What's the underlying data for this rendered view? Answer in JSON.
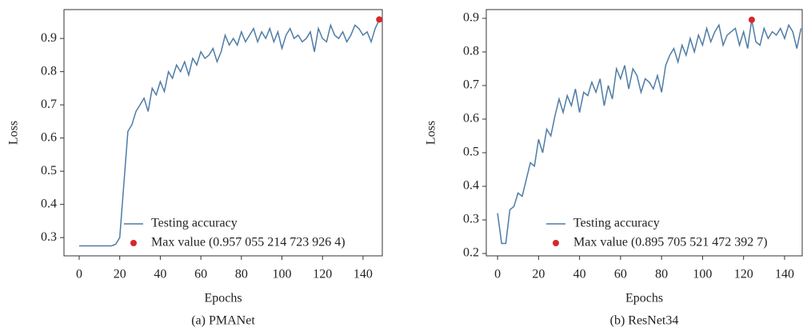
{
  "chart_data": [
    {
      "type": "line",
      "xlabel": "Epochs",
      "ylabel": "Loss",
      "caption": "(a) PMANet",
      "xlim": [
        -7.5,
        149.5
      ],
      "ylim": [
        0.245,
        0.987
      ],
      "xticks": [
        0,
        20,
        40,
        60,
        80,
        100,
        120,
        140
      ],
      "yticks": [
        0.3,
        0.4,
        0.5,
        0.6,
        0.7,
        0.8,
        0.9
      ],
      "series": [
        {
          "name": "Testing accuracy",
          "kind": "line",
          "color": "#4e7ca6",
          "x": [
            0,
            2,
            4,
            6,
            8,
            10,
            12,
            14,
            16,
            18,
            20,
            22,
            24,
            26,
            28,
            30,
            32,
            34,
            36,
            38,
            40,
            42,
            44,
            46,
            48,
            50,
            52,
            54,
            56,
            58,
            60,
            62,
            64,
            66,
            68,
            70,
            72,
            74,
            76,
            78,
            80,
            82,
            84,
            86,
            88,
            90,
            92,
            94,
            96,
            98,
            100,
            102,
            104,
            106,
            108,
            110,
            112,
            114,
            116,
            118,
            120,
            122,
            124,
            126,
            128,
            130,
            132,
            134,
            136,
            138,
            140,
            142,
            144,
            146,
            148
          ],
          "values": [
            0.275,
            0.275,
            0.275,
            0.275,
            0.275,
            0.275,
            0.275,
            0.275,
            0.275,
            0.28,
            0.3,
            0.46,
            0.62,
            0.64,
            0.68,
            0.7,
            0.72,
            0.68,
            0.75,
            0.73,
            0.77,
            0.74,
            0.8,
            0.78,
            0.82,
            0.8,
            0.83,
            0.79,
            0.84,
            0.82,
            0.86,
            0.84,
            0.85,
            0.87,
            0.83,
            0.86,
            0.91,
            0.88,
            0.9,
            0.88,
            0.92,
            0.89,
            0.91,
            0.93,
            0.89,
            0.92,
            0.9,
            0.93,
            0.89,
            0.92,
            0.87,
            0.91,
            0.93,
            0.9,
            0.91,
            0.89,
            0.9,
            0.92,
            0.86,
            0.93,
            0.9,
            0.89,
            0.94,
            0.91,
            0.9,
            0.92,
            0.89,
            0.91,
            0.94,
            0.93,
            0.91,
            0.92,
            0.89,
            0.93,
            0.957
          ]
        },
        {
          "name": "Max value (0.957 055 214 723 926 4)",
          "kind": "point",
          "color": "#d62728",
          "x": [
            148
          ],
          "values": [
            0.9570552147239264
          ]
        }
      ]
    },
    {
      "type": "line",
      "xlabel": "Epochs",
      "ylabel": "Loss",
      "caption": "(b) ResNet34",
      "xlim": [
        -5.5,
        148.6
      ],
      "ylim": [
        0.193,
        0.926
      ],
      "xticks": [
        0,
        20,
        40,
        60,
        80,
        100,
        120,
        140
      ],
      "yticks": [
        0.2,
        0.3,
        0.4,
        0.5,
        0.6,
        0.7,
        0.8,
        0.9
      ],
      "series": [
        {
          "name": "Testing accuracy",
          "kind": "line",
          "color": "#4e7ca6",
          "x": [
            0,
            2,
            4,
            6,
            8,
            10,
            12,
            14,
            16,
            18,
            20,
            22,
            24,
            26,
            28,
            30,
            32,
            34,
            36,
            38,
            40,
            42,
            44,
            46,
            48,
            50,
            52,
            54,
            56,
            58,
            60,
            62,
            64,
            66,
            68,
            70,
            72,
            74,
            76,
            78,
            80,
            82,
            84,
            86,
            88,
            90,
            92,
            94,
            96,
            98,
            100,
            102,
            104,
            106,
            108,
            110,
            112,
            114,
            116,
            118,
            120,
            122,
            124,
            126,
            128,
            130,
            132,
            134,
            136,
            138,
            140,
            142,
            144,
            146,
            148
          ],
          "values": [
            0.32,
            0.23,
            0.23,
            0.33,
            0.34,
            0.38,
            0.37,
            0.42,
            0.47,
            0.46,
            0.54,
            0.5,
            0.57,
            0.55,
            0.61,
            0.66,
            0.62,
            0.67,
            0.64,
            0.69,
            0.62,
            0.68,
            0.67,
            0.71,
            0.68,
            0.72,
            0.64,
            0.7,
            0.66,
            0.75,
            0.72,
            0.76,
            0.69,
            0.75,
            0.73,
            0.68,
            0.72,
            0.71,
            0.69,
            0.73,
            0.68,
            0.76,
            0.79,
            0.81,
            0.77,
            0.82,
            0.79,
            0.84,
            0.8,
            0.85,
            0.82,
            0.87,
            0.83,
            0.86,
            0.88,
            0.82,
            0.85,
            0.86,
            0.87,
            0.82,
            0.86,
            0.81,
            0.896,
            0.83,
            0.82,
            0.87,
            0.84,
            0.86,
            0.85,
            0.87,
            0.84,
            0.88,
            0.86,
            0.81,
            0.87
          ]
        },
        {
          "name": "Max value (0.895 705 521 472 392 7)",
          "kind": "point",
          "color": "#d62728",
          "x": [
            124
          ],
          "values": [
            0.8957055214723927
          ]
        }
      ]
    }
  ]
}
